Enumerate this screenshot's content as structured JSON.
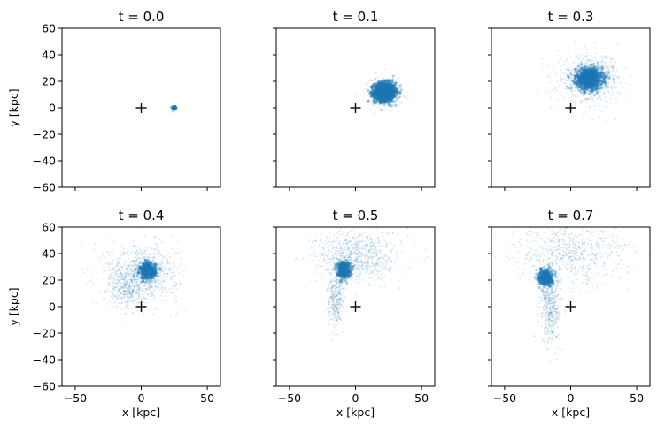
{
  "chart_data": [
    {
      "type": "scatter",
      "title": "t = 0.0",
      "xlabel": "",
      "ylabel": "y [kpc]",
      "xlim": [
        -60,
        60
      ],
      "ylim": [
        -60,
        60
      ],
      "xticks": [
        -50,
        0,
        50
      ],
      "yticks": [
        -60,
        -40,
        -20,
        0,
        20,
        40,
        60
      ],
      "show_xticklabels": false,
      "show_yticklabels": true,
      "marker": {
        "x": 0,
        "y": 0,
        "symbol": "+"
      },
      "clusters": [
        {
          "center": [
            25,
            0
          ],
          "spread": [
            0.6,
            0.6
          ],
          "n": 180,
          "kind": "core"
        }
      ]
    },
    {
      "type": "scatter",
      "title": "t = 0.1",
      "xlabel": "",
      "ylabel": "",
      "xlim": [
        -60,
        60
      ],
      "ylim": [
        -60,
        60
      ],
      "xticks": [
        -50,
        0,
        50
      ],
      "yticks": [
        -60,
        -40,
        -20,
        0,
        20,
        40,
        60
      ],
      "show_xticklabels": false,
      "show_yticklabels": false,
      "marker": {
        "x": 0,
        "y": 0,
        "symbol": "+"
      },
      "clusters": [
        {
          "center": [
            22,
            12
          ],
          "spread": [
            4,
            3.5
          ],
          "n": 1400,
          "kind": "core"
        },
        {
          "center": [
            22,
            12
          ],
          "spread": [
            7,
            6
          ],
          "n": 250,
          "kind": "halo"
        }
      ]
    },
    {
      "type": "scatter",
      "title": "t = 0.3",
      "xlabel": "",
      "ylabel": "",
      "xlim": [
        -60,
        60
      ],
      "ylim": [
        -60,
        60
      ],
      "xticks": [
        -50,
        0,
        50
      ],
      "yticks": [
        -60,
        -40,
        -20,
        0,
        20,
        40,
        60
      ],
      "show_xticklabels": false,
      "show_yticklabels": false,
      "marker": {
        "x": 0,
        "y": 0,
        "symbol": "+"
      },
      "clusters": [
        {
          "center": [
            14,
            22
          ],
          "spread": [
            5,
            4
          ],
          "n": 1000,
          "kind": "core"
        },
        {
          "center": [
            14,
            22
          ],
          "spread": [
            12,
            9
          ],
          "n": 700,
          "kind": "halo"
        }
      ]
    },
    {
      "type": "scatter",
      "title": "t = 0.4",
      "xlabel": "x [kpc]",
      "ylabel": "y [kpc]",
      "xlim": [
        -60,
        60
      ],
      "ylim": [
        -60,
        60
      ],
      "xticks": [
        -50,
        0,
        50
      ],
      "yticks": [
        -60,
        -40,
        -20,
        0,
        20,
        40,
        60
      ],
      "show_xticklabels": true,
      "show_yticklabels": true,
      "marker": {
        "x": 0,
        "y": 0,
        "symbol": "+"
      },
      "clusters": [
        {
          "center": [
            5,
            27
          ],
          "spread": [
            3,
            3
          ],
          "n": 500,
          "kind": "core"
        },
        {
          "center": [
            0,
            25
          ],
          "spread": [
            14,
            11
          ],
          "n": 900,
          "kind": "halo"
        },
        {
          "center": [
            -10,
            12
          ],
          "spread": [
            6,
            7
          ],
          "n": 250,
          "kind": "halo"
        }
      ]
    },
    {
      "type": "scatter",
      "title": "t = 0.5",
      "xlabel": "x [kpc]",
      "ylabel": "",
      "xlim": [
        -60,
        60
      ],
      "ylim": [
        -60,
        60
      ],
      "xticks": [
        -50,
        0,
        50
      ],
      "yticks": [
        -60,
        -40,
        -20,
        0,
        20,
        40,
        60
      ],
      "show_xticklabels": true,
      "show_yticklabels": false,
      "marker": {
        "x": 0,
        "y": 0,
        "symbol": "+"
      },
      "clusters": [
        {
          "center": [
            -9,
            28
          ],
          "spread": [
            2.5,
            3
          ],
          "n": 450,
          "kind": "core"
        },
        {
          "center": [
            2,
            38
          ],
          "spread": [
            16,
            10
          ],
          "n": 800,
          "kind": "halo"
        },
        {
          "center": [
            -15,
            5
          ],
          "spread": [
            3,
            10
          ],
          "n": 350,
          "kind": "halo"
        }
      ]
    },
    {
      "type": "scatter",
      "title": "t = 0.7",
      "xlabel": "x [kpc]",
      "ylabel": "",
      "xlim": [
        -60,
        60
      ],
      "ylim": [
        -60,
        60
      ],
      "xticks": [
        -50,
        0,
        50
      ],
      "yticks": [
        -60,
        -40,
        -20,
        0,
        20,
        40,
        60
      ],
      "show_xticklabels": true,
      "show_yticklabels": false,
      "marker": {
        "x": 0,
        "y": 0,
        "symbol": "+"
      },
      "clusters": [
        {
          "center": [
            -19,
            22
          ],
          "spread": [
            2.5,
            3
          ],
          "n": 450,
          "kind": "core"
        },
        {
          "center": [
            -15,
            0
          ],
          "spread": [
            4,
            14
          ],
          "n": 500,
          "kind": "halo"
        },
        {
          "center": [
            0,
            40
          ],
          "spread": [
            22,
            12
          ],
          "n": 700,
          "kind": "halo"
        }
      ]
    }
  ],
  "colors": {
    "points": "#1f77b4",
    "marker": "#000000",
    "frame": "#000000"
  }
}
